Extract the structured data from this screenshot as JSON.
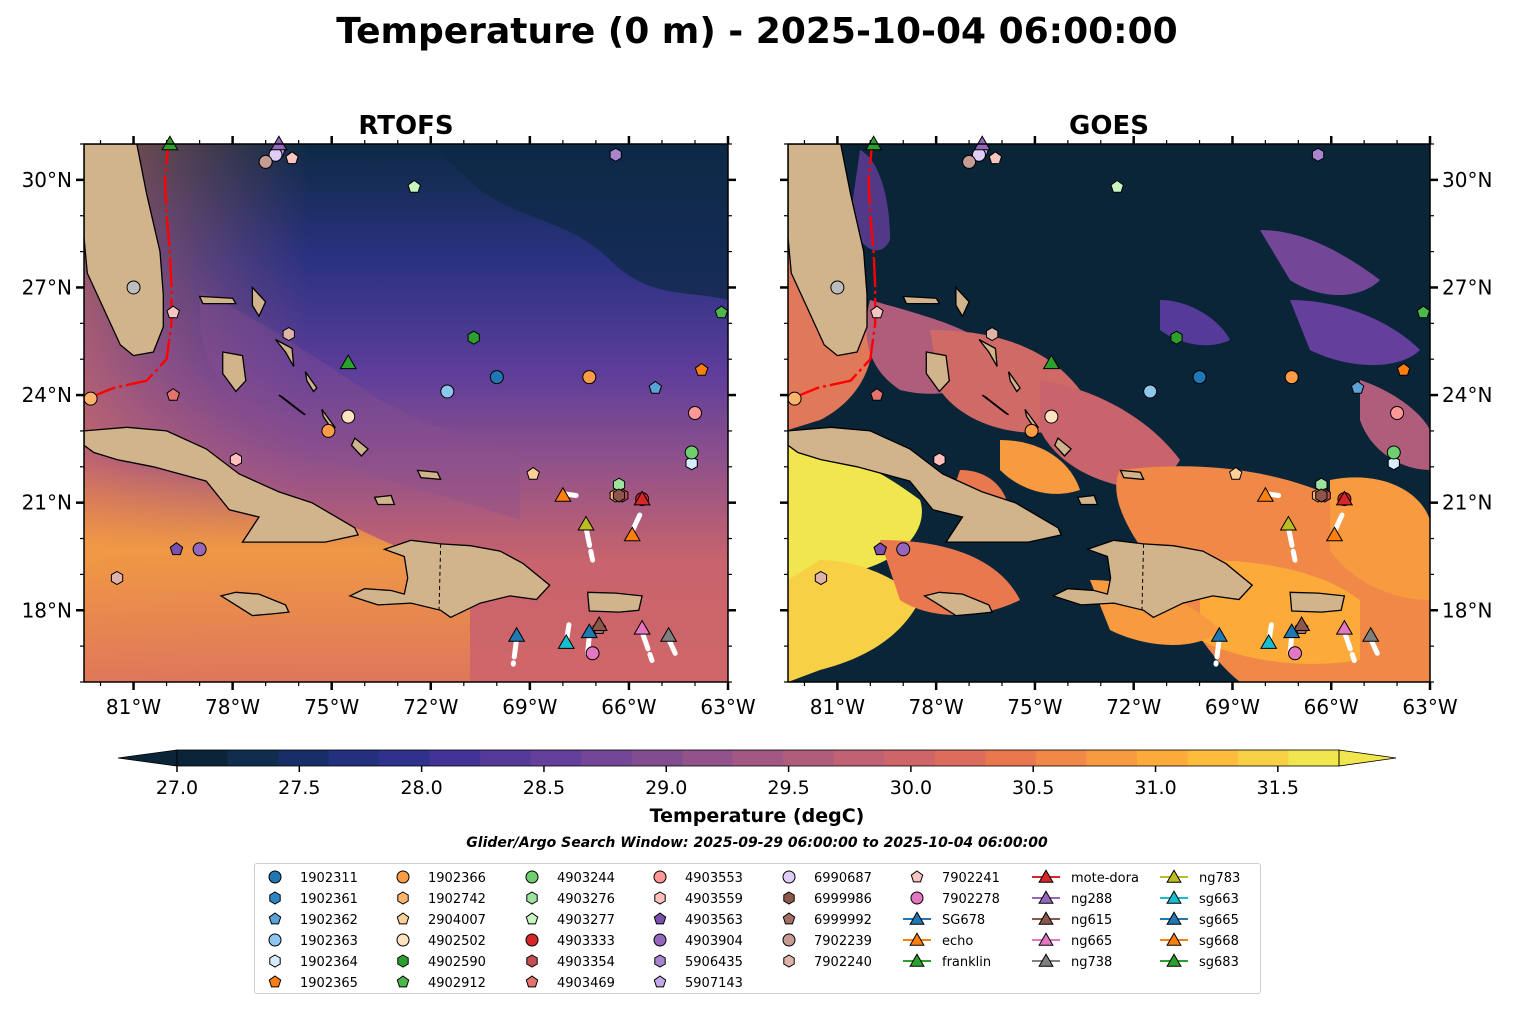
{
  "figure": {
    "title": "Temperature (0 m) - 2025-10-04 06:00:00",
    "search_window": "Glider/Argo Search Window: 2025-09-29 06:00:00 to 2025-10-04 06:00:00"
  },
  "panels": [
    {
      "title": "RTOFS",
      "kind": "model"
    },
    {
      "title": "GOES",
      "kind": "satellite"
    }
  ],
  "map": {
    "lon_range": [
      -82.5,
      -63.0
    ],
    "lat_range": [
      16.0,
      31.0
    ],
    "lon_ticks": [
      "81°W",
      "78°W",
      "75°W",
      "72°W",
      "69°W",
      "66°W",
      "63°W"
    ],
    "lat_ticks": [
      "30°N",
      "27°N",
      "24°N",
      "21°N",
      "18°N"
    ],
    "land_color": "#d2b48c",
    "current_color": "#ff0000",
    "track_color": "#ffffff"
  },
  "colorbar": {
    "label": "Temperature (degC)",
    "min": 27.0,
    "max": 31.75,
    "extend": "both",
    "ticks": [
      "27.0",
      "27.5",
      "28.0",
      "28.5",
      "29.0",
      "29.5",
      "30.0",
      "30.5",
      "31.0",
      "31.5"
    ],
    "colors": [
      "#0b2538",
      "#0f2e4e",
      "#172f66",
      "#22307e",
      "#30318d",
      "#433396",
      "#553a99",
      "#643f9b",
      "#744697",
      "#824c91",
      "#92528a",
      "#a25883",
      "#b05d7b",
      "#c06273",
      "#ce6568",
      "#dc6d5c",
      "#e9784f",
      "#f08848",
      "#f79a40",
      "#fcaa3a",
      "#fdbc3c",
      "#f7d045",
      "#f1e64e"
    ]
  },
  "chart_data": {
    "type": "map",
    "title": "Temperature (0 m) - 2025-10-04 06:00:00",
    "xlim": [
      -82.5,
      -63.0
    ],
    "ylim": [
      16.0,
      31.0
    ],
    "colorbar_label": "Temperature (degC)",
    "colorbar_range": [
      27.0,
      31.75
    ],
    "argo_floats": [
      {
        "id": "1902311",
        "lon": -70.0,
        "lat": 24.5,
        "color": "#1f77b4",
        "marker": "circle"
      },
      {
        "id": "1902361",
        "lon": -64.1,
        "lat": 22.1,
        "color": "#2e86c1",
        "marker": "hexagon"
      },
      {
        "id": "1902362",
        "lon": -65.2,
        "lat": 24.2,
        "color": "#5aa2d8",
        "marker": "pentagon"
      },
      {
        "id": "1902363",
        "lon": -71.5,
        "lat": 24.1,
        "color": "#8ec6ee",
        "marker": "circle"
      },
      {
        "id": "1902364",
        "lon": -64.1,
        "lat": 22.1,
        "color": "#d6ecff",
        "marker": "hexagon"
      },
      {
        "id": "1902365",
        "lon": -63.8,
        "lat": 24.7,
        "color": "#ff7f0e",
        "marker": "pentagon"
      },
      {
        "id": "1902366",
        "lon": -67.2,
        "lat": 24.5,
        "color": "#ff9c45",
        "marker": "circle"
      },
      {
        "id": "1902742",
        "lon": -66.4,
        "lat": 21.2,
        "color": "#ffb46e",
        "marker": "hexagon"
      },
      {
        "id": "2904007",
        "lon": -68.9,
        "lat": 21.8,
        "color": "#ffcf9a",
        "marker": "pentagon"
      },
      {
        "id": "4902502",
        "lon": -74.5,
        "lat": 23.4,
        "color": "#ffe2c0",
        "marker": "circle"
      },
      {
        "id": "4902590",
        "lon": -70.7,
        "lat": 25.6,
        "color": "#2ca02c",
        "marker": "hexagon"
      },
      {
        "id": "4902912",
        "lon": -63.2,
        "lat": 26.3,
        "color": "#4cb84c",
        "marker": "pentagon"
      },
      {
        "id": "4903244",
        "lon": -64.1,
        "lat": 22.4,
        "color": "#6fcf6f",
        "marker": "circle"
      },
      {
        "id": "4903276",
        "lon": -66.3,
        "lat": 21.5,
        "color": "#9de39d",
        "marker": "hexagon"
      },
      {
        "id": "4903277",
        "lon": -72.5,
        "lat": 29.8,
        "color": "#c9f5c0",
        "marker": "pentagon"
      },
      {
        "id": "4903333",
        "lon": -65.6,
        "lat": 21.1,
        "color": "#d62728",
        "marker": "circle"
      },
      {
        "id": "4903354",
        "lon": -66.2,
        "lat": 21.2,
        "color": "#c44e52",
        "marker": "hexagon"
      },
      {
        "id": "4903469",
        "lon": -79.8,
        "lat": 24.0,
        "color": "#e5736d",
        "marker": "pentagon"
      },
      {
        "id": "4903553",
        "lon": -64.0,
        "lat": 23.5,
        "color": "#ff9896",
        "marker": "circle"
      },
      {
        "id": "4903559",
        "lon": -77.9,
        "lat": 22.2,
        "color": "#ffbfbd",
        "marker": "hexagon"
      },
      {
        "id": "4903563",
        "lon": -79.7,
        "lat": 19.7,
        "color": "#7b4fb0",
        "marker": "pentagon"
      },
      {
        "id": "4903904",
        "lon": -79.0,
        "lat": 19.7,
        "color": "#9467bd",
        "marker": "circle"
      },
      {
        "id": "5906435",
        "lon": -66.4,
        "lat": 30.7,
        "color": "#a985d0",
        "marker": "hexagon"
      },
      {
        "id": "5907143",
        "lon": -76.6,
        "lat": 30.8,
        "color": "#c5a8e6",
        "marker": "pentagon"
      },
      {
        "id": "6990687",
        "lon": -76.7,
        "lat": 30.7,
        "color": "#e0cdf5",
        "marker": "circle"
      },
      {
        "id": "6999986",
        "lon": -66.3,
        "lat": 21.2,
        "color": "#8c564b",
        "marker": "hexagon"
      },
      {
        "id": "6999992",
        "lon": -66.9,
        "lat": 17.5,
        "color": "#a56e62",
        "marker": "pentagon"
      },
      {
        "id": "7902239",
        "lon": -77.0,
        "lat": 30.5,
        "color": "#c49c94",
        "marker": "circle"
      },
      {
        "id": "7902240",
        "lon": -76.3,
        "lat": 25.7,
        "color": "#dfb3a9",
        "marker": "hexagon"
      },
      {
        "id": "7902241",
        "lon": -76.2,
        "lat": 30.6,
        "color": "#f7c6c0",
        "marker": "pentagon"
      },
      {
        "id": "7902278",
        "lon": -67.1,
        "lat": 16.8,
        "color": "#e377c2",
        "marker": "circle"
      },
      {
        "id": "1902742b",
        "lon": -82.3,
        "lat": 23.9,
        "color": "#ffb46e",
        "marker": "circle"
      },
      {
        "id": "1902366b",
        "lon": -75.1,
        "lat": 23.0,
        "color": "#ff9c45",
        "marker": "circle"
      },
      {
        "id": "7902240b",
        "lon": -81.5,
        "lat": 18.9,
        "color": "#dfb3a9",
        "marker": "hexagon"
      },
      {
        "id": "7902241b",
        "lon": -79.8,
        "lat": 26.3,
        "color": "#f7c6c0",
        "marker": "pentagon"
      },
      {
        "id": "6990687b",
        "lon": -81.0,
        "lat": 27.0,
        "color": "#bdbdbd",
        "marker": "circle"
      }
    ],
    "gliders": [
      {
        "id": "SG678",
        "lon": -69.4,
        "lat": 17.3,
        "color": "#1f77b4"
      },
      {
        "id": "echo",
        "lon": -68.0,
        "lat": 21.2,
        "color": "#ff7f0e"
      },
      {
        "id": "franklin",
        "lon": -79.9,
        "lat": 31.0,
        "color": "#2ca02c"
      },
      {
        "id": "mote-dora",
        "lon": -65.6,
        "lat": 21.1,
        "color": "#d62728"
      },
      {
        "id": "ng288",
        "lon": -76.6,
        "lat": 31.0,
        "color": "#9467bd"
      },
      {
        "id": "ng615",
        "lon": -66.9,
        "lat": 17.6,
        "color": "#8c564b"
      },
      {
        "id": "ng665",
        "lon": -65.6,
        "lat": 17.5,
        "color": "#e377c2"
      },
      {
        "id": "ng738",
        "lon": -64.8,
        "lat": 17.3,
        "color": "#7f7f7f"
      },
      {
        "id": "ng783",
        "lon": -67.3,
        "lat": 20.4,
        "color": "#bcbd22"
      },
      {
        "id": "sg663",
        "lon": -67.9,
        "lat": 17.1,
        "color": "#17becf"
      },
      {
        "id": "sg665",
        "lon": -67.2,
        "lat": 17.4,
        "color": "#1f77b4"
      },
      {
        "id": "sg668",
        "lon": -65.9,
        "lat": 20.1,
        "color": "#ff7f0e"
      },
      {
        "id": "sg683",
        "lon": -74.5,
        "lat": 24.9,
        "color": "#2ca02c"
      }
    ]
  },
  "legend": {
    "columns": [
      [
        {
          "label": "1902311",
          "marker": "circle",
          "color": "#1f77b4"
        },
        {
          "label": "1902361",
          "marker": "hexagon",
          "color": "#2e86c1"
        },
        {
          "label": "1902362",
          "marker": "pentagon",
          "color": "#5aa2d8"
        },
        {
          "label": "1902363",
          "marker": "circle",
          "color": "#8ec6ee"
        },
        {
          "label": "1902364",
          "marker": "hexagon",
          "color": "#d6ecff"
        },
        {
          "label": "1902365",
          "marker": "pentagon",
          "color": "#ff7f0e"
        }
      ],
      [
        {
          "label": "1902366",
          "marker": "circle",
          "color": "#ff9c45"
        },
        {
          "label": "1902742",
          "marker": "hexagon",
          "color": "#ffb46e"
        },
        {
          "label": "2904007",
          "marker": "pentagon",
          "color": "#ffcf9a"
        },
        {
          "label": "4902502",
          "marker": "circle",
          "color": "#ffe2c0"
        },
        {
          "label": "4902590",
          "marker": "hexagon",
          "color": "#2ca02c"
        },
        {
          "label": "4902912",
          "marker": "pentagon",
          "color": "#4cb84c"
        }
      ],
      [
        {
          "label": "4903244",
          "marker": "circle",
          "color": "#6fcf6f"
        },
        {
          "label": "4903276",
          "marker": "hexagon",
          "color": "#9de39d"
        },
        {
          "label": "4903277",
          "marker": "pentagon",
          "color": "#c9f5c0"
        },
        {
          "label": "4903333",
          "marker": "circle",
          "color": "#d62728"
        },
        {
          "label": "4903354",
          "marker": "hexagon",
          "color": "#c44e52"
        },
        {
          "label": "4903469",
          "marker": "pentagon",
          "color": "#e5736d"
        }
      ],
      [
        {
          "label": "4903553",
          "marker": "circle",
          "color": "#ff9896"
        },
        {
          "label": "4903559",
          "marker": "hexagon",
          "color": "#ffbfbd"
        },
        {
          "label": "4903563",
          "marker": "pentagon",
          "color": "#7b4fb0"
        },
        {
          "label": "4903904",
          "marker": "circle",
          "color": "#9467bd"
        },
        {
          "label": "5906435",
          "marker": "hexagon",
          "color": "#a985d0"
        },
        {
          "label": "5907143",
          "marker": "pentagon",
          "color": "#c5a8e6"
        }
      ],
      [
        {
          "label": "6990687",
          "marker": "circle",
          "color": "#e0cdf5"
        },
        {
          "label": "6999986",
          "marker": "hexagon",
          "color": "#8c564b"
        },
        {
          "label": "6999992",
          "marker": "pentagon",
          "color": "#a56e62"
        },
        {
          "label": "7902239",
          "marker": "circle",
          "color": "#c49c94"
        },
        {
          "label": "7902240",
          "marker": "hexagon",
          "color": "#dfb3a9"
        }
      ],
      [
        {
          "label": "7902241",
          "marker": "pentagon",
          "color": "#f7c6c0"
        },
        {
          "label": "7902278",
          "marker": "circle",
          "color": "#e377c2"
        },
        {
          "label": "SG678",
          "marker": "triangle-line",
          "color": "#1f77b4"
        },
        {
          "label": "echo",
          "marker": "triangle-line",
          "color": "#ff7f0e"
        },
        {
          "label": "franklin",
          "marker": "triangle-line",
          "color": "#2ca02c"
        }
      ],
      [
        {
          "label": "mote-dora",
          "marker": "triangle-line",
          "color": "#d62728"
        },
        {
          "label": "ng288",
          "marker": "triangle-line",
          "color": "#9467bd"
        },
        {
          "label": "ng615",
          "marker": "triangle-line",
          "color": "#8c564b"
        },
        {
          "label": "ng665",
          "marker": "triangle-line",
          "color": "#e377c2"
        },
        {
          "label": "ng738",
          "marker": "triangle-line",
          "color": "#7f7f7f"
        }
      ],
      [
        {
          "label": "ng783",
          "marker": "triangle-line",
          "color": "#bcbd22"
        },
        {
          "label": "sg663",
          "marker": "triangle-line",
          "color": "#17becf"
        },
        {
          "label": "sg665",
          "marker": "triangle-line",
          "color": "#1f77b4"
        },
        {
          "label": "sg668",
          "marker": "triangle-line",
          "color": "#ff7f0e"
        },
        {
          "label": "sg683",
          "marker": "triangle-line",
          "color": "#2ca02c"
        }
      ]
    ]
  }
}
